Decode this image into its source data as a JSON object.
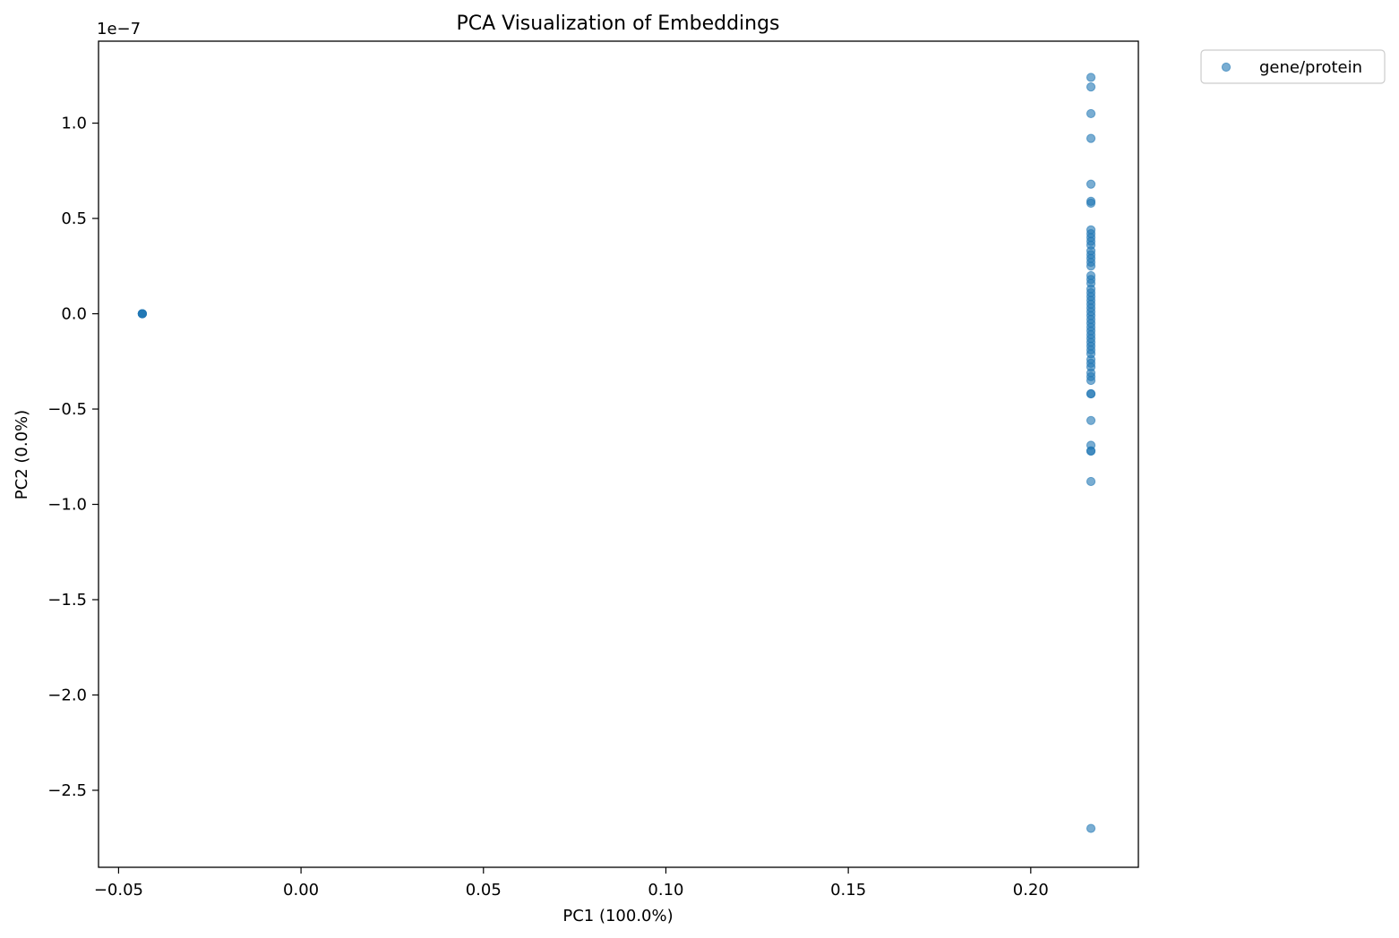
{
  "chart_data": {
    "type": "scatter",
    "title": "PCA Visualization of Embeddings",
    "xlabel": "PC1 (100.0%)",
    "ylabel": "PC2 (0.0%)",
    "y_offset_label": "1e−7",
    "xlim": [
      -0.0555,
      0.2295
    ],
    "ylim": [
      -2.904,
      1.43
    ],
    "xticks": [
      -0.05,
      0.0,
      0.05,
      0.1,
      0.15,
      0.2
    ],
    "xtick_labels": [
      "−0.05",
      "0.00",
      "0.05",
      "0.10",
      "0.15",
      "0.20"
    ],
    "yticks": [
      1.0,
      0.5,
      0.0,
      -0.5,
      -1.0,
      -1.5,
      -2.0,
      -2.5
    ],
    "ytick_labels": [
      "1.0",
      "0.5",
      "0.0",
      "−0.5",
      "−1.0",
      "−1.5",
      "−2.0",
      "−2.5"
    ],
    "grid": false,
    "legend_placement": "outside-top-right",
    "series": [
      {
        "name": "gene/protein",
        "color": "#1f77b4",
        "points": [
          [
            -0.0435,
            0.0
          ],
          [
            -0.0435,
            0.0
          ],
          [
            -0.0435,
            0.0
          ],
          [
            -0.0435,
            0.0
          ],
          [
            -0.0435,
            0.0
          ],
          [
            0.2165,
            1.24
          ],
          [
            0.2165,
            1.19
          ],
          [
            0.2165,
            1.05
          ],
          [
            0.2165,
            0.92
          ],
          [
            0.2165,
            0.68
          ],
          [
            0.2165,
            0.59
          ],
          [
            0.2165,
            0.58
          ],
          [
            0.2165,
            0.44
          ],
          [
            0.2165,
            0.42
          ],
          [
            0.2165,
            0.4
          ],
          [
            0.2165,
            0.38
          ],
          [
            0.2165,
            0.36
          ],
          [
            0.2165,
            0.33
          ],
          [
            0.2165,
            0.31
          ],
          [
            0.2165,
            0.29
          ],
          [
            0.2165,
            0.27
          ],
          [
            0.2165,
            0.25
          ],
          [
            0.2165,
            0.2
          ],
          [
            0.2165,
            0.18
          ],
          [
            0.2165,
            0.16
          ],
          [
            0.2165,
            0.13
          ],
          [
            0.2165,
            0.11
          ],
          [
            0.2165,
            0.09
          ],
          [
            0.2165,
            0.07
          ],
          [
            0.2165,
            0.05
          ],
          [
            0.2165,
            0.03
          ],
          [
            0.2165,
            0.01
          ],
          [
            0.2165,
            -0.01
          ],
          [
            0.2165,
            -0.03
          ],
          [
            0.2165,
            -0.05
          ],
          [
            0.2165,
            -0.07
          ],
          [
            0.2165,
            -0.09
          ],
          [
            0.2165,
            -0.11
          ],
          [
            0.2165,
            -0.13
          ],
          [
            0.2165,
            -0.15
          ],
          [
            0.2165,
            -0.17
          ],
          [
            0.2165,
            -0.19
          ],
          [
            0.2165,
            -0.21
          ],
          [
            0.2165,
            -0.24
          ],
          [
            0.2165,
            -0.26
          ],
          [
            0.2165,
            -0.28
          ],
          [
            0.2165,
            -0.31
          ],
          [
            0.2165,
            -0.33
          ],
          [
            0.2165,
            -0.35
          ],
          [
            0.2165,
            -0.42
          ],
          [
            0.2165,
            -0.42
          ],
          [
            0.2165,
            -0.56
          ],
          [
            0.2165,
            -0.69
          ],
          [
            0.2165,
            -0.72
          ],
          [
            0.2165,
            -0.72
          ],
          [
            0.2165,
            -0.88
          ],
          [
            0.2165,
            -2.7
          ]
        ]
      }
    ]
  }
}
